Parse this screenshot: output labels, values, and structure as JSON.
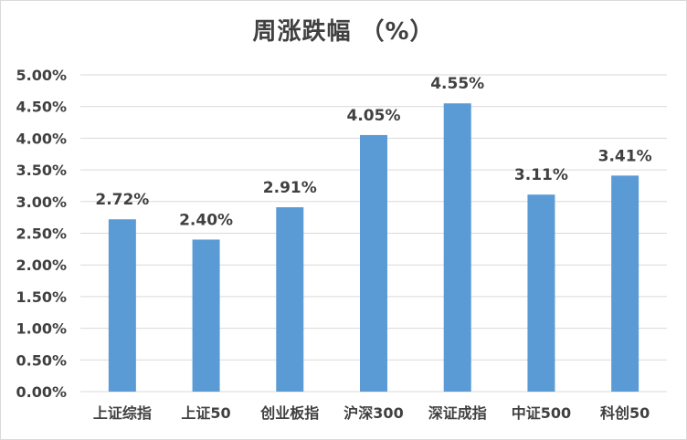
{
  "chart_data": {
    "type": "bar",
    "title": "周涨跌幅 （%）",
    "categories": [
      "上证综指",
      "上证50",
      "创业板指",
      "沪深300",
      "深证成指",
      "中证500",
      "科创50"
    ],
    "values": [
      2.72,
      2.4,
      2.91,
      4.05,
      4.55,
      3.11,
      3.41
    ],
    "data_labels": [
      "2.72%",
      "2.40%",
      "2.91%",
      "4.05%",
      "4.55%",
      "3.11%",
      "3.41%"
    ],
    "ylim": [
      0,
      5
    ],
    "yticks": [
      0,
      0.5,
      1,
      1.5,
      2,
      2.5,
      3,
      3.5,
      4,
      4.5,
      5
    ],
    "ytick_labels": [
      "0.00%",
      "0.50%",
      "1.00%",
      "1.50%",
      "2.00%",
      "2.50%",
      "3.00%",
      "3.50%",
      "4.00%",
      "4.50%",
      "5.00%"
    ],
    "grid": true,
    "legend": "none",
    "bar_color": "#5b9bd5",
    "grid_color": "#d9d9d9"
  }
}
